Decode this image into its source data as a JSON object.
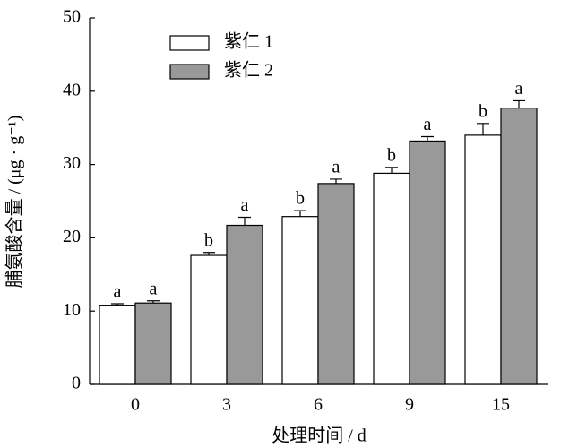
{
  "chart_data": {
    "type": "bar",
    "xlabel": "处理时间 / d",
    "ylabel": "脯氨酸含量 / (μg · g⁻¹)",
    "categories": [
      "0",
      "3",
      "6",
      "9",
      "15"
    ],
    "series": [
      {
        "name": "紫仁 1",
        "color": "#ffffff",
        "values": [
          10.8,
          17.6,
          22.9,
          28.8,
          34.0
        ],
        "errors": [
          0.2,
          0.4,
          0.8,
          0.8,
          1.6
        ],
        "labels": [
          "a",
          "b",
          "b",
          "b",
          "b"
        ]
      },
      {
        "name": "紫仁 2",
        "color": "#999999",
        "values": [
          11.1,
          21.7,
          27.4,
          33.2,
          37.7
        ],
        "errors": [
          0.3,
          1.1,
          0.6,
          0.6,
          1.0
        ],
        "labels": [
          "a",
          "a",
          "a",
          "a",
          "a"
        ]
      }
    ],
    "ylim": [
      0,
      50
    ],
    "yticks": [
      0,
      10,
      20,
      30,
      40,
      50
    ],
    "grid": false,
    "legend": "upper left"
  }
}
